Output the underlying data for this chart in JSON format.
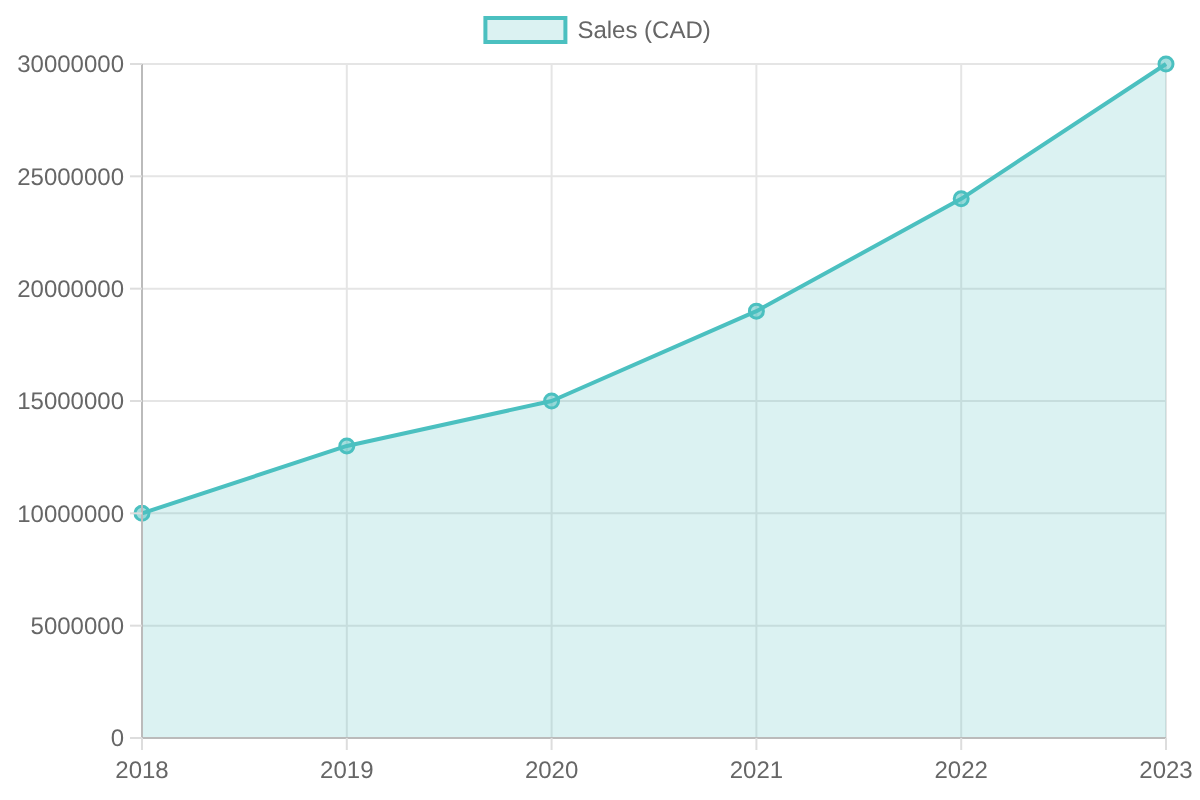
{
  "chart_data": {
    "type": "area",
    "categories": [
      "2018",
      "2019",
      "2020",
      "2021",
      "2022",
      "2023"
    ],
    "series": [
      {
        "name": "Sales (CAD)",
        "color": "#4bc0c0",
        "values": [
          10000000,
          13000000,
          15000000,
          19000000,
          24000000,
          30000000
        ]
      }
    ],
    "ylim": [
      0,
      30000000
    ],
    "yticks": [
      0,
      5000000,
      10000000,
      15000000,
      20000000,
      25000000,
      30000000
    ],
    "grid": true,
    "legend": "top",
    "marker": "circle"
  }
}
